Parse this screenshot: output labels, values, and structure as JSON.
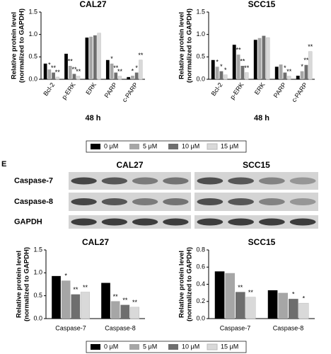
{
  "chart_data": [
    {
      "type": "bar",
      "title": "CAL27",
      "ylabel": [
        "Relative protein level",
        "(normalized to GAPDH)"
      ],
      "xlabel": "48 h",
      "categories": [
        "Bcl-2",
        "p-ERK",
        "ERK",
        "PARP",
        "c-PARP"
      ],
      "ylim": [
        0,
        1.5
      ],
      "yticks": [
        {
          "value": 0,
          "label": "0.0"
        },
        {
          "value": 0.5,
          "label": "0.5"
        },
        {
          "value": 1,
          "label": "1.0"
        },
        {
          "value": 1.5,
          "label": "1.5"
        }
      ],
      "series": [
        {
          "name": "0 μM",
          "color": "#000000",
          "values": [
            0.35,
            0.57,
            0.93,
            0.43,
            0.05
          ],
          "significance": [
            null,
            null,
            null,
            null,
            null
          ]
        },
        {
          "name": "5 μM",
          "color": "#a6a6a6",
          "values": [
            0.22,
            0.3,
            0.95,
            0.35,
            0.08
          ],
          "significance": [
            "*",
            "**",
            null,
            "*",
            "*"
          ]
        },
        {
          "name": "10 μM",
          "color": "#6e6e6e",
          "values": [
            0.15,
            0.12,
            0.98,
            0.15,
            0.15
          ],
          "significance": [
            "**",
            "**",
            null,
            "**",
            "*"
          ]
        },
        {
          "name": "15 μM",
          "color": "#d9d9d9",
          "values": [
            0.05,
            0.07,
            1.03,
            0.07,
            0.43
          ],
          "significance": [
            "**",
            "**",
            null,
            "**",
            "**"
          ]
        }
      ]
    },
    {
      "type": "bar",
      "title": "SCC15",
      "ylabel": [
        "Relative protein level",
        "(normalized to GAPDH)"
      ],
      "xlabel": "48 h",
      "categories": [
        "Bcl-2",
        "p-ERK",
        "ERK",
        "PARP",
        "c-PARP"
      ],
      "ylim": [
        0,
        1.5
      ],
      "yticks": [
        {
          "value": 0,
          "label": "0.0"
        },
        {
          "value": 0.5,
          "label": "0.5"
        },
        {
          "value": 1,
          "label": "1.0"
        },
        {
          "value": 1.5,
          "label": "1.5"
        }
      ],
      "series": [
        {
          "name": "0 μM",
          "color": "#000000",
          "values": [
            0.43,
            0.77,
            0.88,
            0.28,
            0.08
          ],
          "significance": [
            null,
            null,
            null,
            null,
            null
          ]
        },
        {
          "name": "5 μM",
          "color": "#a6a6a6",
          "values": [
            0.28,
            0.55,
            0.92,
            0.33,
            0.18
          ],
          "significance": [
            "*",
            "**",
            null,
            null,
            "*"
          ]
        },
        {
          "name": "10 μM",
          "color": "#6e6e6e",
          "values": [
            0.18,
            0.3,
            0.97,
            0.15,
            0.32
          ],
          "significance": [
            "*",
            "**",
            null,
            "*",
            "**"
          ]
        },
        {
          "name": "15 μM",
          "color": "#d9d9d9",
          "values": [
            0.1,
            0.15,
            0.93,
            0.07,
            0.62
          ],
          "significance": [
            "*",
            "**",
            null,
            "**",
            "**"
          ]
        }
      ]
    },
    {
      "type": "bar",
      "title": "CAL27",
      "ylabel": [
        "Relative protein level",
        "(normalized to GAPDH)"
      ],
      "categories": [
        "Caspase-7",
        "Caspase-8"
      ],
      "ylim": [
        0,
        1.5
      ],
      "yticks": [
        {
          "value": 0,
          "label": "0.0"
        },
        {
          "value": 0.5,
          "label": "0.5"
        },
        {
          "value": 1,
          "label": "1.0"
        },
        {
          "value": 1.5,
          "label": "1.5"
        }
      ],
      "series": [
        {
          "name": "0 μM",
          "color": "#000000",
          "values": [
            0.93,
            0.78
          ],
          "significance": [
            null,
            null
          ]
        },
        {
          "name": "5 μM",
          "color": "#a6a6a6",
          "values": [
            0.83,
            0.38
          ],
          "significance": [
            "*",
            "**"
          ]
        },
        {
          "name": "10 μM",
          "color": "#6e6e6e",
          "values": [
            0.53,
            0.3
          ],
          "significance": [
            "**",
            "**"
          ]
        },
        {
          "name": "15 μM",
          "color": "#d9d9d9",
          "values": [
            0.58,
            0.25
          ],
          "significance": [
            "**",
            "**"
          ]
        }
      ]
    },
    {
      "type": "bar",
      "title": "SCC15",
      "ylabel": [
        "Relative protein level",
        "(normalized to GAPDH)"
      ],
      "categories": [
        "Caspase-7",
        "Caspase-8"
      ],
      "ylim": [
        0,
        0.8
      ],
      "yticks": [
        {
          "value": 0,
          "label": "0.0"
        },
        {
          "value": 0.2,
          "label": "0.2"
        },
        {
          "value": 0.4,
          "label": "0.4"
        },
        {
          "value": 0.6,
          "label": "0.6"
        },
        {
          "value": 0.8,
          "label": "0.8"
        }
      ],
      "series": [
        {
          "name": "0 μM",
          "color": "#000000",
          "values": [
            0.55,
            0.33
          ],
          "significance": [
            null,
            null
          ]
        },
        {
          "name": "5 μM",
          "color": "#a6a6a6",
          "values": [
            0.53,
            0.3
          ],
          "significance": [
            null,
            null
          ]
        },
        {
          "name": "10 μM",
          "color": "#6e6e6e",
          "values": [
            0.31,
            0.23
          ],
          "significance": [
            "**",
            "*"
          ]
        },
        {
          "name": "15 μM",
          "color": "#d9d9d9",
          "values": [
            0.25,
            0.18
          ],
          "significance": [
            "**",
            "*"
          ]
        }
      ]
    }
  ],
  "panel_label": "E",
  "blot": {
    "columns": [
      "CAL27",
      "SCC15"
    ],
    "rows": [
      "Caspase-7",
      "Caspase-8",
      "GAPDH"
    ]
  }
}
